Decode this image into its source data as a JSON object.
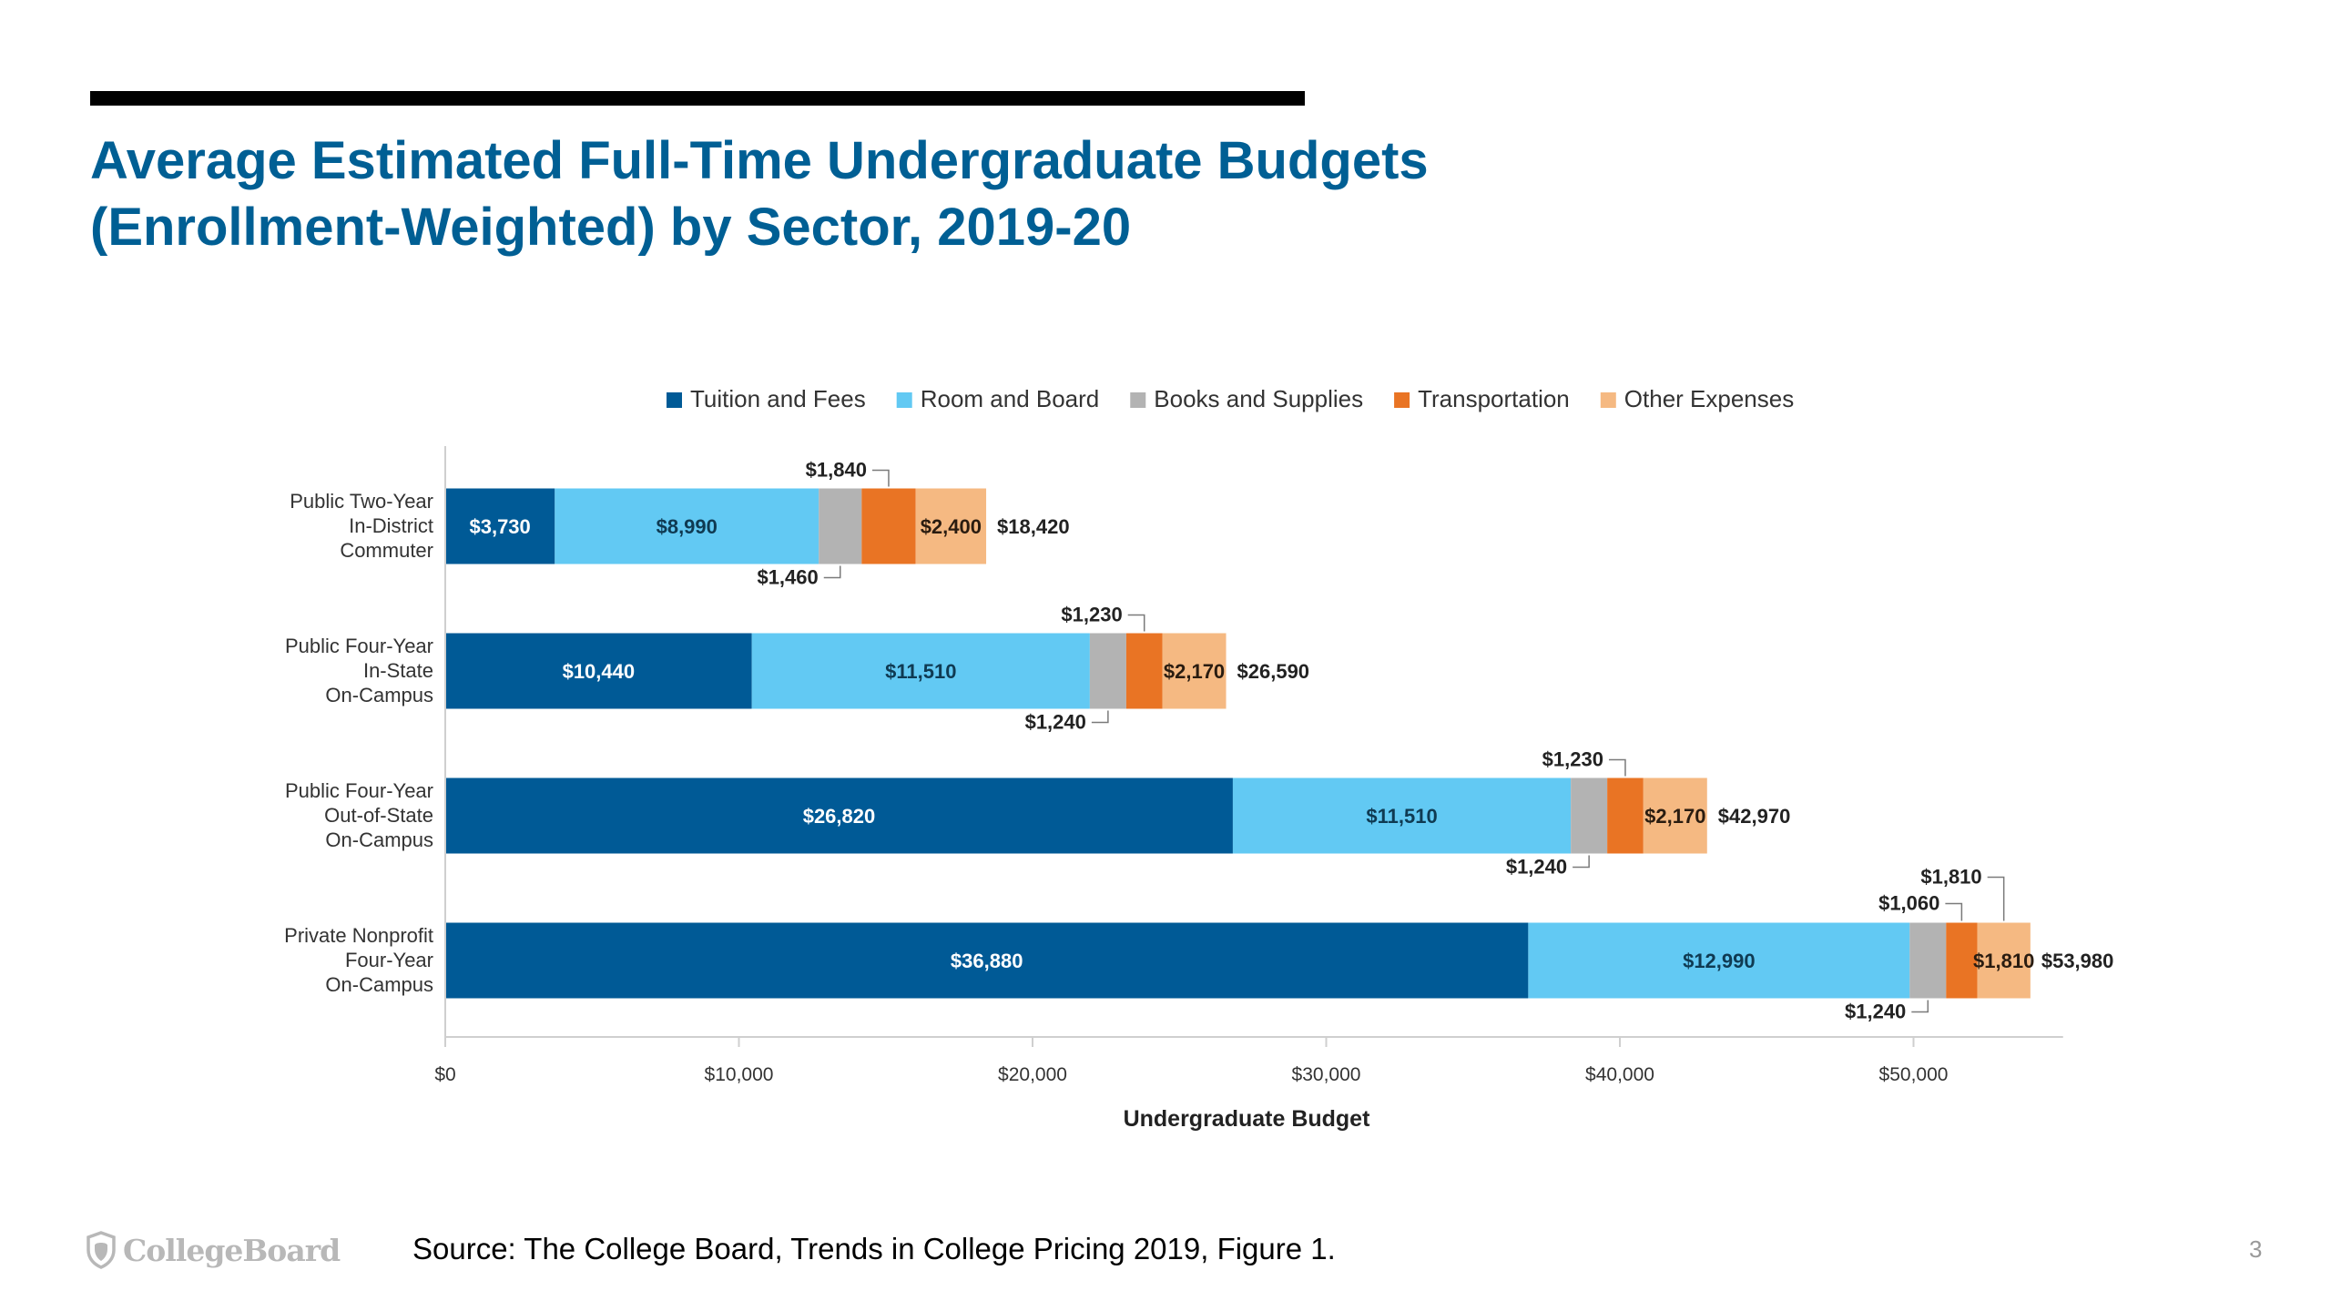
{
  "slide": {
    "title_line1": "Average Estimated Full-Time Undergraduate Budgets",
    "title_line2": "(Enrollment-Weighted) by Sector, 2019-20",
    "source": "Source: The College Board, Trends in College Pricing 2019, Figure 1.",
    "page_number": "3",
    "logo_text": "CollegeBoard",
    "logo_icon": "acorn-shield-icon"
  },
  "chart_data": {
    "type": "bar",
    "orientation": "horizontal",
    "stacked": true,
    "title": "",
    "xlabel": "Undergraduate Budget",
    "ylabel": "",
    "xlim": [
      0,
      55000
    ],
    "x_ticks": [
      0,
      10000,
      20000,
      30000,
      40000,
      50000
    ],
    "x_tick_labels": [
      "$0",
      "$10,000",
      "$20,000",
      "$30,000",
      "$40,000",
      "$50,000"
    ],
    "legend_position": "top",
    "grid": false,
    "categories": [
      [
        "Public Two-Year",
        "In-District",
        "Commuter"
      ],
      [
        "Public Four-Year",
        "In-State",
        "On-Campus"
      ],
      [
        "Public Four-Year",
        "Out-of-State",
        "On-Campus"
      ],
      [
        "Private Nonprofit",
        "Four-Year",
        "On-Campus"
      ]
    ],
    "series": [
      {
        "name": "Tuition and Fees",
        "color": "#005a96",
        "values": [
          3730,
          10440,
          26820,
          36880
        ],
        "labels": [
          "$3,730",
          "$10,440",
          "$26,820",
          "$36,880"
        ]
      },
      {
        "name": "Room and Board",
        "color": "#62c9f3",
        "values": [
          8990,
          11510,
          11510,
          12990
        ],
        "labels": [
          "$8,990",
          "$11,510",
          "$11,510",
          "$12,990"
        ]
      },
      {
        "name": "Books and Supplies",
        "color": "#b3b3b3",
        "values": [
          1460,
          1240,
          1240,
          1240
        ],
        "labels": [
          "$1,460",
          "$1,240",
          "$1,240",
          "$1,240"
        ]
      },
      {
        "name": "Transportation",
        "color": "#e97424",
        "values": [
          1840,
          1230,
          1230,
          1060
        ],
        "labels": [
          "$1,840",
          "$1,230",
          "$1,230",
          "$1,060"
        ]
      },
      {
        "name": "Other Expenses",
        "color": "#f5b982",
        "values": [
          2400,
          2170,
          2170,
          1810
        ],
        "labels": [
          "$2,400",
          "$2,170",
          "$2,170",
          "$1,810"
        ]
      }
    ],
    "totals": [
      18420,
      26590,
      42970,
      53980
    ],
    "total_labels": [
      "$18,420",
      "$26,590",
      "$42,970",
      "$53,980"
    ]
  }
}
